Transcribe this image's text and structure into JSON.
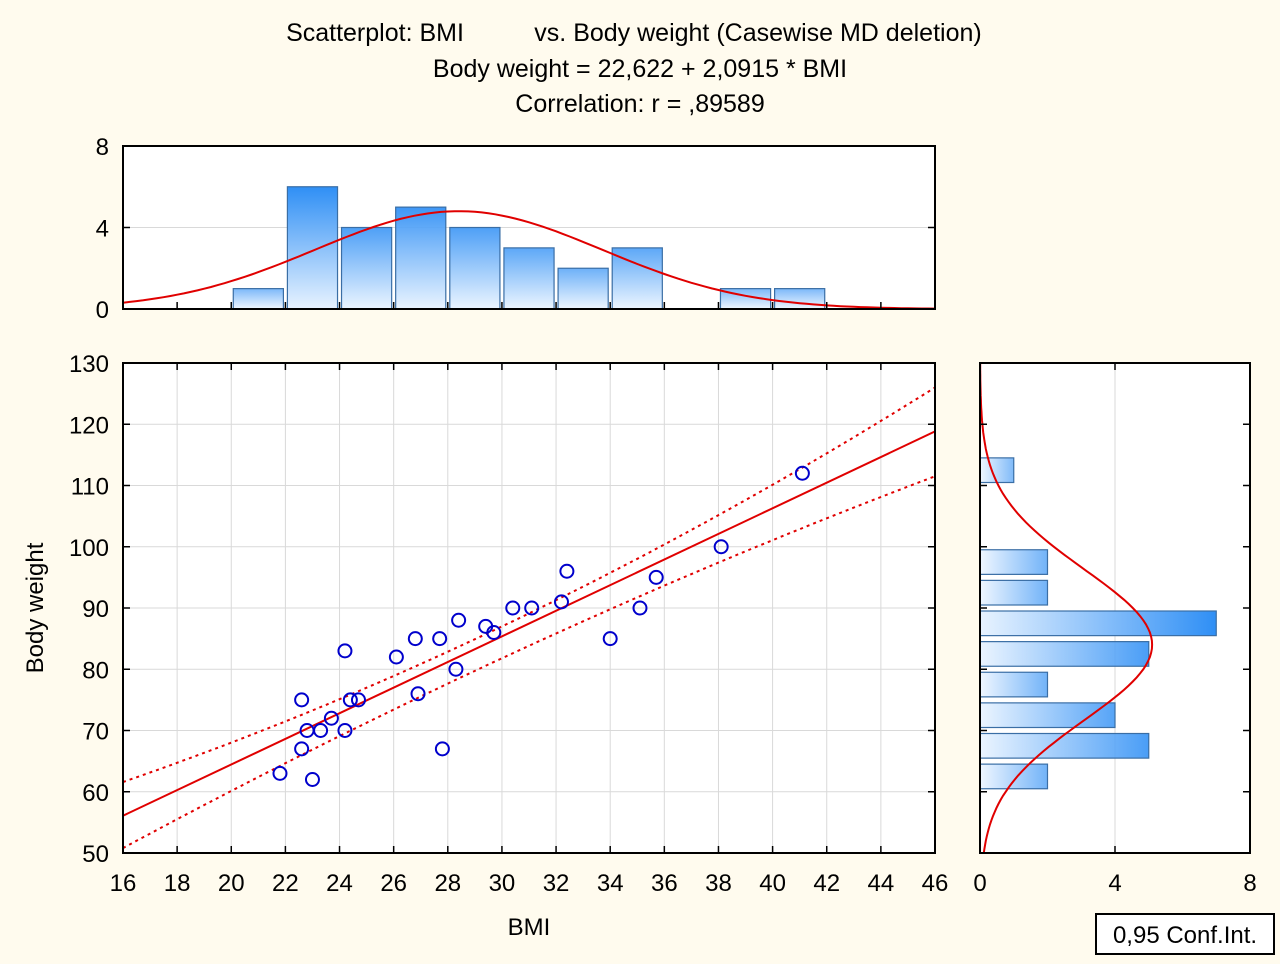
{
  "title": {
    "line1_left": "Scatterplot: BMI",
    "line1_right": "vs. Body weight (Casewise MD deletion)",
    "line2": "Body weight = 22,622 + 2,0915 * BMI",
    "line3": "Correlation: r = ,89589"
  },
  "legend_box": "0,95 Conf.Int.",
  "colors": {
    "background": "#fffbee",
    "fit_line": "#e00000",
    "points": "#0000cc",
    "bar_dark": "#2f8ff5",
    "bar_light": "#e8f3ff",
    "bar_stroke": "#3a6ea5",
    "grid": "#d9d9d9"
  },
  "chart_data": [
    {
      "type": "scatter",
      "xlabel": "BMI",
      "ylabel": "Body weight",
      "xlim": [
        16,
        46
      ],
      "ylim": [
        50,
        130
      ],
      "xticks": [
        "16",
        "18",
        "20",
        "22",
        "24",
        "26",
        "28",
        "30",
        "32",
        "34",
        "36",
        "38",
        "40",
        "42",
        "44",
        "46"
      ],
      "yticks": [
        "50",
        "60",
        "70",
        "80",
        "90",
        "100",
        "110",
        "120",
        "130"
      ],
      "grid": true,
      "points": [
        {
          "x": 21.8,
          "y": 63
        },
        {
          "x": 22.6,
          "y": 75
        },
        {
          "x": 22.6,
          "y": 67
        },
        {
          "x": 22.8,
          "y": 70
        },
        {
          "x": 23.0,
          "y": 62
        },
        {
          "x": 23.3,
          "y": 70
        },
        {
          "x": 23.7,
          "y": 72
        },
        {
          "x": 24.2,
          "y": 83
        },
        {
          "x": 24.2,
          "y": 70
        },
        {
          "x": 24.4,
          "y": 75
        },
        {
          "x": 24.7,
          "y": 75
        },
        {
          "x": 26.1,
          "y": 82
        },
        {
          "x": 26.8,
          "y": 85
        },
        {
          "x": 26.9,
          "y": 76
        },
        {
          "x": 27.7,
          "y": 85
        },
        {
          "x": 27.8,
          "y": 67
        },
        {
          "x": 28.3,
          "y": 80
        },
        {
          "x": 28.4,
          "y": 88
        },
        {
          "x": 29.4,
          "y": 87
        },
        {
          "x": 29.7,
          "y": 86
        },
        {
          "x": 30.4,
          "y": 90
        },
        {
          "x": 31.1,
          "y": 90
        },
        {
          "x": 32.2,
          "y": 91
        },
        {
          "x": 32.4,
          "y": 96
        },
        {
          "x": 34.0,
          "y": 85
        },
        {
          "x": 35.1,
          "y": 90
        },
        {
          "x": 35.7,
          "y": 95
        },
        {
          "x": 38.1,
          "y": 100
        },
        {
          "x": 41.1,
          "y": 112
        }
      ],
      "regression": {
        "intercept": 22.622,
        "slope": 2.0915
      },
      "conf_band": {
        "level": 0.95,
        "upper": [
          {
            "x": 16,
            "y": 61.6
          },
          {
            "x": 30.1,
            "y": 87.2
          },
          {
            "x": 46,
            "y": 126.0
          }
        ],
        "lower": [
          {
            "x": 16,
            "y": 50.8
          },
          {
            "x": 30.1,
            "y": 82.0
          },
          {
            "x": 46,
            "y": 111.5
          }
        ]
      }
    },
    {
      "type": "bar",
      "name": "BMI histogram",
      "bin_edges": [
        20,
        22,
        24,
        26,
        28,
        30,
        32,
        34,
        36,
        38,
        40,
        42
      ],
      "values": [
        1,
        6,
        4,
        5,
        4,
        3,
        2,
        3,
        0,
        1,
        1
      ],
      "xlim": [
        16,
        46
      ],
      "ylim": [
        0,
        8
      ],
      "yticks": [
        "0",
        "4",
        "8"
      ],
      "normal_curve": {
        "mean": 28.4,
        "sd": 5.3,
        "peak": 4.8
      }
    },
    {
      "type": "bar",
      "name": "Body weight histogram",
      "orientation": "horizontal",
      "bin_edges": [
        60,
        65,
        70,
        75,
        80,
        85,
        90,
        95,
        100,
        105,
        110,
        115
      ],
      "values": [
        2,
        5,
        4,
        2,
        5,
        7,
        2,
        2,
        0,
        0,
        1
      ],
      "xlim": [
        0,
        8
      ],
      "xticks": [
        "0",
        "4",
        "8"
      ],
      "ylim": [
        50,
        130
      ],
      "normal_curve": {
        "mean": 84,
        "sd": 12.3,
        "peak": 5.1
      }
    }
  ]
}
